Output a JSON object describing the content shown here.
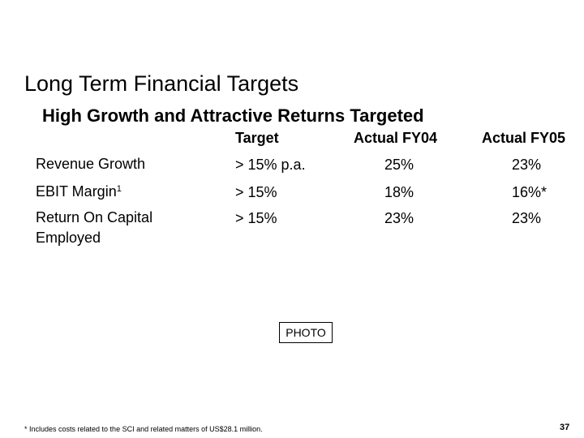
{
  "slide": {
    "title": "Long Term Financial Targets",
    "subtitle": "High Growth and Attractive Returns Targeted"
  },
  "table": {
    "columns": [
      "Target",
      "Actual FY04",
      "Actual FY05"
    ],
    "rows": [
      {
        "label": "Revenue Growth",
        "label_sup": "",
        "label_line2": "",
        "target": "> 15% p.a.",
        "fy04": "25%",
        "fy05": "23%"
      },
      {
        "label": "EBIT Margin",
        "label_sup": "1",
        "label_line2": "",
        "target": "> 15%",
        "fy04": "18%",
        "fy05": "16%*"
      },
      {
        "label": "Return On Capital",
        "label_sup": "",
        "label_line2": "Employed",
        "target": "> 15%",
        "fy04": "23%",
        "fy05": "23%"
      }
    ]
  },
  "photo_placeholder": "PHOTO",
  "footnote": "* Includes costs related to the SCI and related matters of US$28.1 million.",
  "page_number": "37"
}
